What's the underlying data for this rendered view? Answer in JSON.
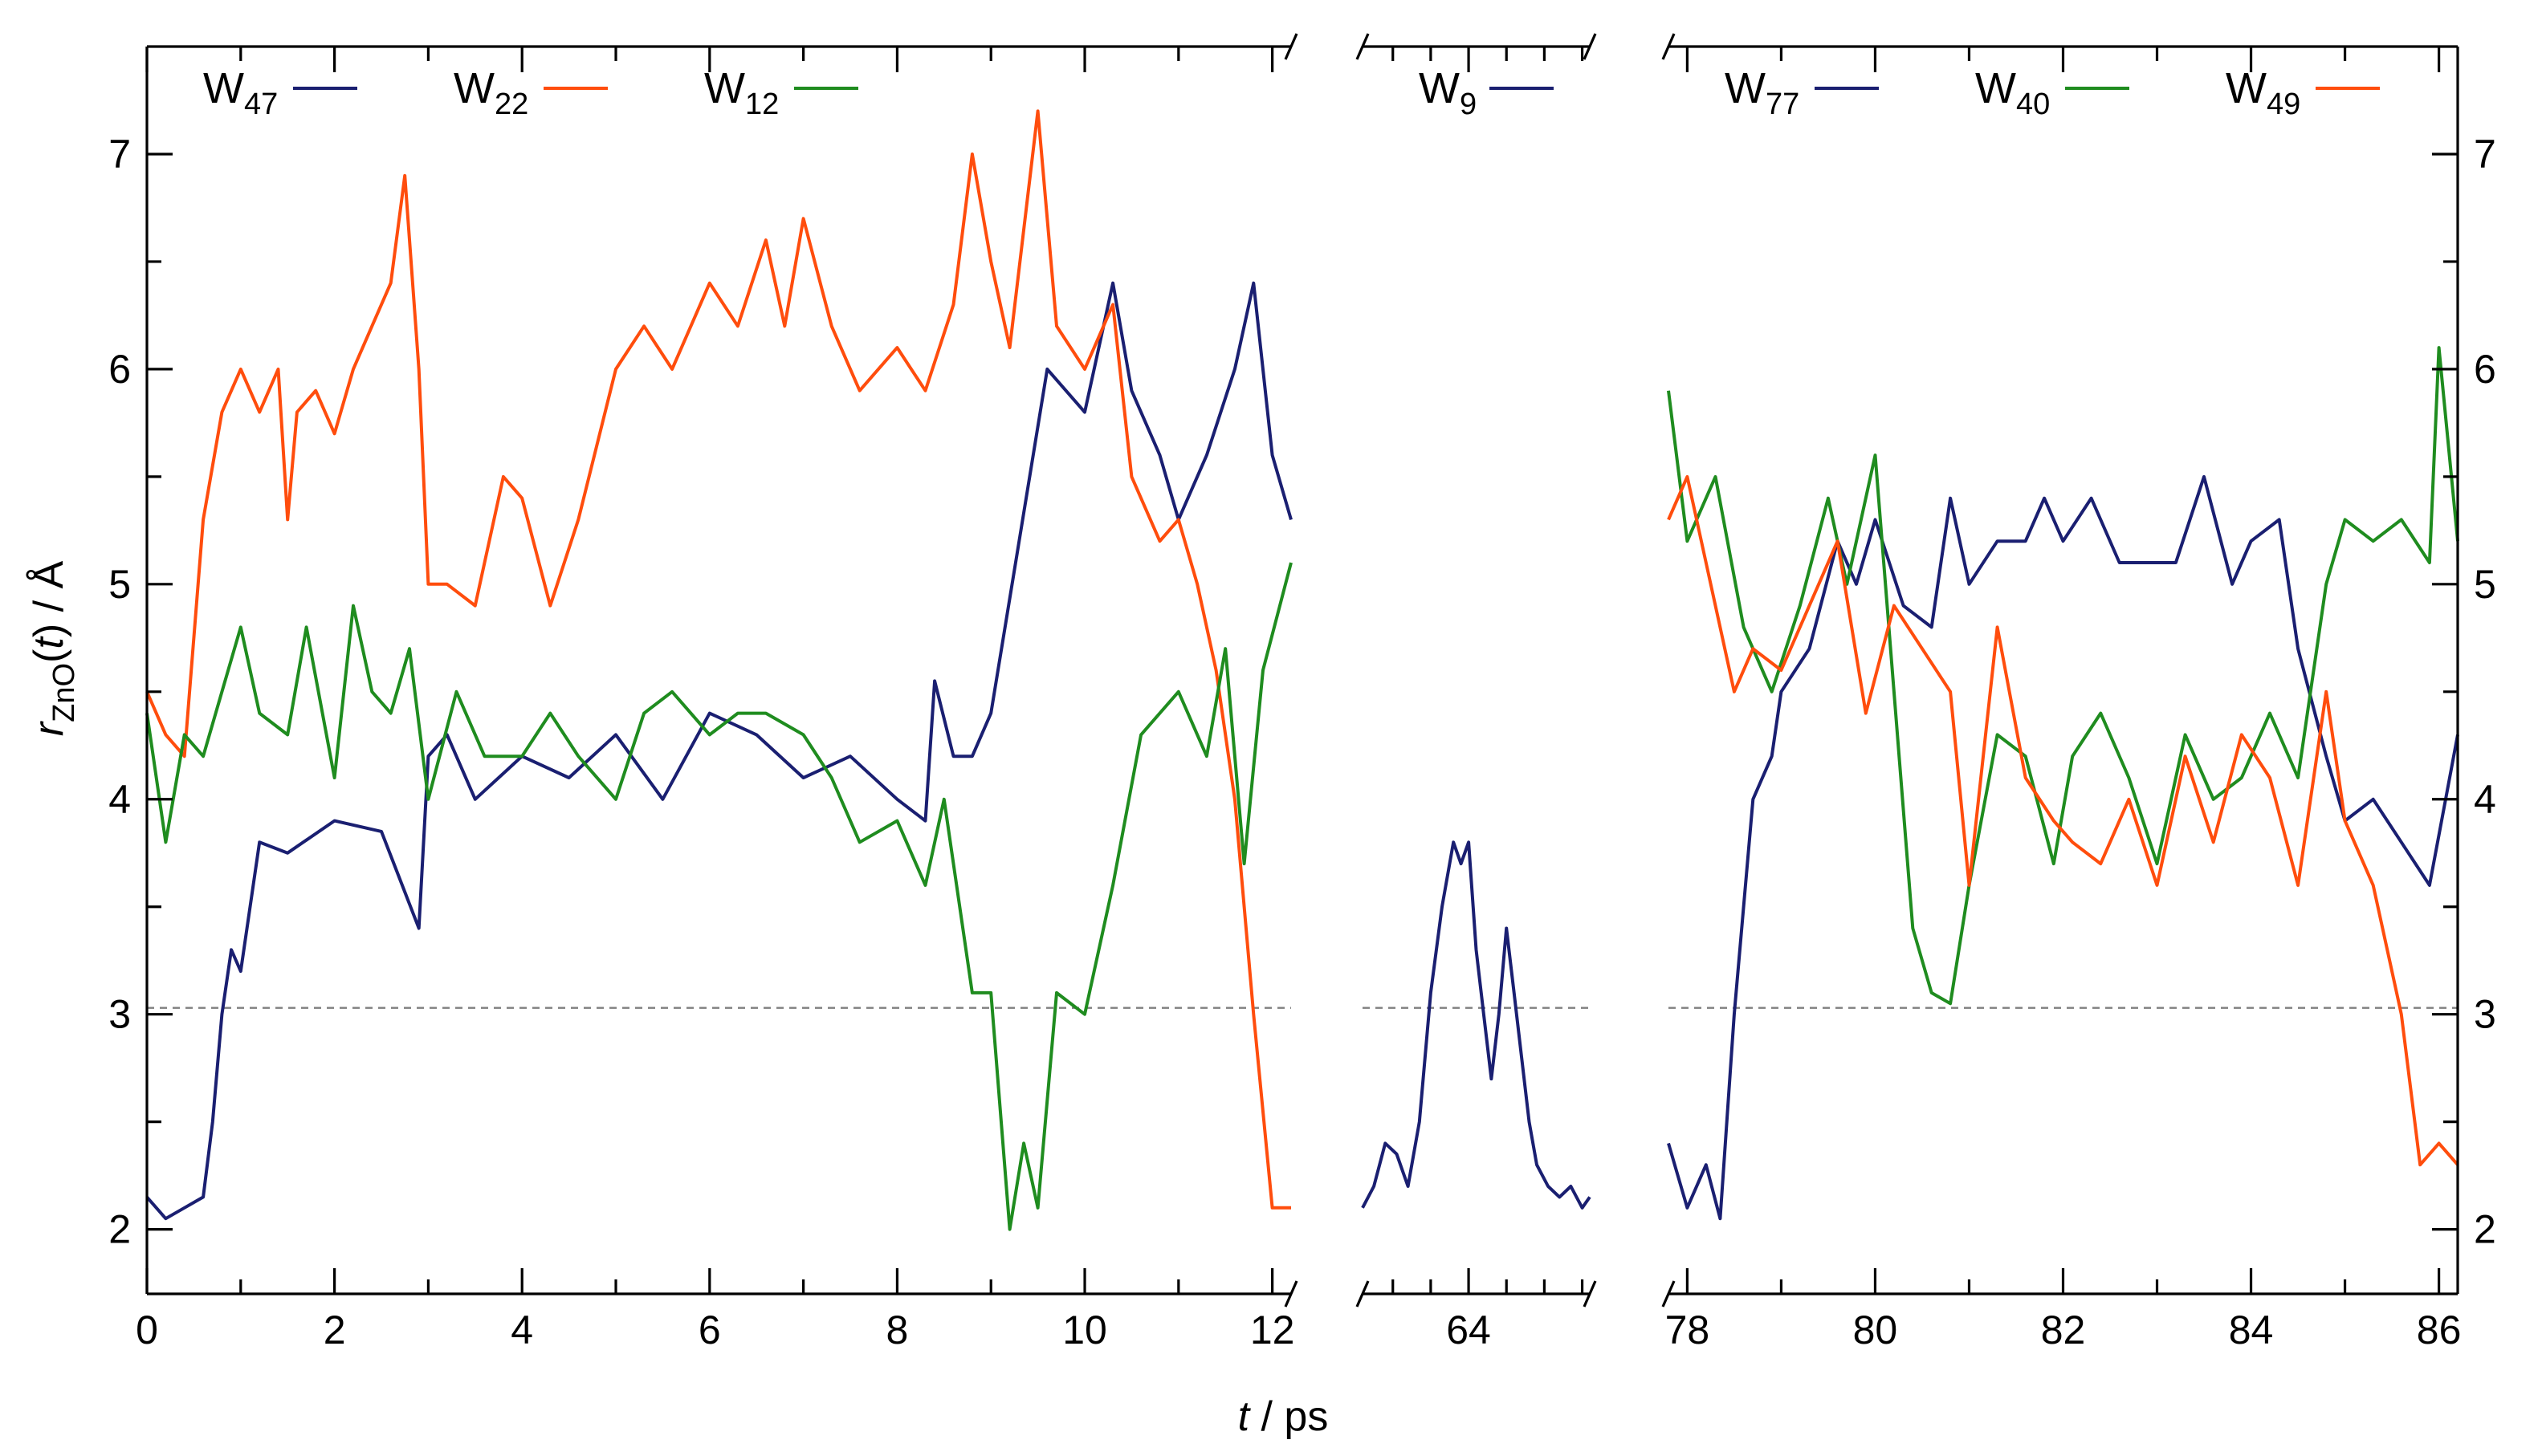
{
  "chart_data": {
    "type": "line",
    "title": "",
    "xlabel": {
      "var": "t",
      "unit": " / ps"
    },
    "ylabel": {
      "var": "r",
      "sub": "ZnO",
      "arg_open": "(",
      "arg_var": "t",
      "arg_close": ")",
      "unit": " / Å"
    },
    "ylim": [
      1.7,
      7.5
    ],
    "yticks": [
      "2",
      "3",
      "4",
      "5",
      "6",
      "7"
    ],
    "threshold": 3.03,
    "colors": {
      "navy": "#1a1f71",
      "orange": "#ff4d0d",
      "green": "#1f8c1f",
      "threshold": "#7f7f7f"
    },
    "panels": [
      {
        "id": "p1",
        "xlim": [
          0,
          12.2
        ],
        "xticks": [
          "0",
          "2",
          "4",
          "6",
          "8",
          "10",
          "12"
        ],
        "legend": [
          {
            "main": "W",
            "sub": "47",
            "color": "#1a1f71"
          },
          {
            "main": "W",
            "sub": "22",
            "color": "#ff4d0d"
          },
          {
            "main": "W",
            "sub": "12",
            "color": "#1f8c1f"
          }
        ],
        "series": [
          {
            "name": "W47",
            "color": "#1a1f71",
            "x": [
              0,
              0.2,
              0.4,
              0.6,
              0.7,
              0.8,
              0.9,
              1.0,
              1.2,
              1.5,
              2.0,
              2.5,
              2.9,
              3.0,
              3.2,
              3.5,
              4.0,
              4.5,
              5.0,
              5.5,
              6.0,
              6.5,
              7.0,
              7.5,
              8.0,
              8.3,
              8.4,
              8.6,
              8.8,
              9.0,
              9.3,
              9.6,
              10.0,
              10.3,
              10.5,
              10.8,
              11.0,
              11.3,
              11.6,
              11.8,
              12.0,
              12.2
            ],
            "y": [
              2.15,
              2.05,
              2.1,
              2.15,
              2.5,
              3.0,
              3.3,
              3.2,
              3.8,
              3.75,
              3.9,
              3.85,
              3.4,
              4.2,
              4.3,
              4.0,
              4.2,
              4.1,
              4.3,
              4.0,
              4.4,
              4.3,
              4.1,
              4.2,
              4.0,
              3.9,
              4.55,
              4.2,
              4.2,
              4.4,
              5.2,
              6.0,
              5.8,
              6.4,
              5.9,
              5.6,
              5.3,
              5.6,
              6.0,
              6.4,
              5.6,
              5.3
            ]
          },
          {
            "name": "W22",
            "color": "#ff4d0d",
            "x": [
              0,
              0.2,
              0.4,
              0.6,
              0.8,
              1.0,
              1.2,
              1.4,
              1.5,
              1.6,
              1.8,
              2.0,
              2.2,
              2.4,
              2.6,
              2.75,
              2.9,
              3.0,
              3.2,
              3.5,
              3.8,
              4.0,
              4.3,
              4.6,
              5.0,
              5.3,
              5.6,
              6.0,
              6.3,
              6.6,
              6.8,
              7.0,
              7.3,
              7.6,
              8.0,
              8.3,
              8.6,
              8.8,
              9.0,
              9.2,
              9.5,
              9.7,
              10.0,
              10.3,
              10.5,
              10.8,
              11.0,
              11.2,
              11.4,
              11.6,
              11.8,
              12.0,
              12.2
            ],
            "y": [
              4.5,
              4.3,
              4.2,
              5.3,
              5.8,
              6.0,
              5.8,
              6.0,
              5.3,
              5.8,
              5.9,
              5.7,
              6.0,
              6.2,
              6.4,
              6.9,
              6.0,
              5.0,
              5.0,
              4.9,
              5.5,
              5.4,
              4.9,
              5.3,
              6.0,
              6.2,
              6.0,
              6.4,
              6.2,
              6.6,
              6.2,
              6.7,
              6.2,
              5.9,
              6.1,
              5.9,
              6.3,
              7.0,
              6.5,
              6.1,
              7.2,
              6.2,
              6.0,
              6.3,
              5.5,
              5.2,
              5.3,
              5.0,
              4.6,
              4.0,
              3.0,
              2.1,
              2.1
            ]
          },
          {
            "name": "W12",
            "color": "#1f8c1f",
            "x": [
              0,
              0.2,
              0.4,
              0.6,
              0.8,
              1.0,
              1.2,
              1.5,
              1.7,
              2.0,
              2.2,
              2.4,
              2.6,
              2.8,
              3.0,
              3.3,
              3.6,
              4.0,
              4.3,
              4.6,
              5.0,
              5.3,
              5.6,
              6.0,
              6.3,
              6.6,
              7.0,
              7.3,
              7.6,
              8.0,
              8.3,
              8.5,
              8.8,
              9.0,
              9.2,
              9.35,
              9.5,
              9.7,
              10.0,
              10.3,
              10.6,
              11.0,
              11.3,
              11.5,
              11.7,
              11.9,
              12.2
            ],
            "y": [
              4.4,
              3.8,
              4.3,
              4.2,
              4.5,
              4.8,
              4.4,
              4.3,
              4.8,
              4.1,
              4.9,
              4.5,
              4.4,
              4.7,
              4.0,
              4.5,
              4.2,
              4.2,
              4.4,
              4.2,
              4.0,
              4.4,
              4.5,
              4.3,
              4.4,
              4.4,
              4.3,
              4.1,
              3.8,
              3.9,
              3.6,
              4.0,
              3.1,
              3.1,
              2.0,
              2.4,
              2.1,
              3.1,
              3.0,
              3.6,
              4.3,
              4.5,
              4.2,
              4.7,
              3.7,
              4.6,
              5.1
            ]
          }
        ]
      },
      {
        "id": "p2",
        "xlim": [
          61.2,
          67.2
        ],
        "xticks": [
          "64"
        ],
        "legend": [
          {
            "main": "W",
            "sub": "9",
            "color": "#1a1f71"
          }
        ],
        "series": [
          {
            "name": "W9",
            "color": "#1a1f71",
            "x": [
              61.2,
              61.5,
              61.8,
              62.1,
              62.4,
              62.7,
              63.0,
              63.3,
              63.6,
              63.8,
              64.0,
              64.2,
              64.4,
              64.6,
              64.8,
              65.0,
              65.2,
              65.4,
              65.6,
              65.8,
              66.1,
              66.4,
              66.7,
              67.0,
              67.2
            ],
            "y": [
              2.1,
              2.2,
              2.4,
              2.35,
              2.2,
              2.5,
              3.1,
              3.5,
              3.8,
              3.7,
              3.8,
              3.3,
              3.0,
              2.7,
              3.0,
              3.4,
              3.1,
              2.8,
              2.5,
              2.3,
              2.2,
              2.15,
              2.2,
              2.1,
              2.15
            ]
          }
        ]
      },
      {
        "id": "p3",
        "xlim": [
          77.8,
          86.2
        ],
        "xticks": [
          "78",
          "80",
          "82",
          "84",
          "86"
        ],
        "legend": [
          {
            "main": "W",
            "sub": "77",
            "color": "#1a1f71"
          },
          {
            "main": "W",
            "sub": "40",
            "color": "#1f8c1f"
          },
          {
            "main": "W",
            "sub": "49",
            "color": "#ff4d0d"
          }
        ],
        "series": [
          {
            "name": "W77",
            "color": "#1a1f71",
            "x": [
              77.8,
              78.0,
              78.2,
              78.35,
              78.5,
              78.7,
              78.9,
              79.0,
              79.3,
              79.6,
              79.8,
              80.0,
              80.3,
              80.6,
              80.8,
              81.0,
              81.3,
              81.6,
              81.8,
              82.0,
              82.3,
              82.6,
              82.9,
              83.2,
              83.5,
              83.8,
              84.0,
              84.3,
              84.5,
              84.8,
              85.0,
              85.3,
              85.6,
              85.9,
              86.2
            ],
            "y": [
              2.4,
              2.1,
              2.3,
              2.05,
              3.0,
              4.0,
              4.2,
              4.5,
              4.7,
              5.2,
              5.0,
              5.3,
              4.9,
              4.8,
              5.4,
              5.0,
              5.2,
              5.2,
              5.4,
              5.2,
              5.4,
              5.1,
              5.1,
              5.1,
              5.5,
              5.0,
              5.2,
              5.3,
              4.7,
              4.2,
              3.9,
              4.0,
              3.8,
              3.6,
              4.3
            ]
          },
          {
            "name": "W40",
            "color": "#1f8c1f",
            "x": [
              77.8,
              78.0,
              78.3,
              78.6,
              78.9,
              79.2,
              79.5,
              79.7,
              80.0,
              80.2,
              80.4,
              80.6,
              80.8,
              81.0,
              81.3,
              81.6,
              81.9,
              82.1,
              82.4,
              82.7,
              83.0,
              83.3,
              83.6,
              83.9,
              84.2,
              84.5,
              84.8,
              85.0,
              85.3,
              85.6,
              85.9,
              86.0,
              86.2
            ],
            "y": [
              5.9,
              5.2,
              5.5,
              4.8,
              4.5,
              4.9,
              5.4,
              5.0,
              5.6,
              4.5,
              3.4,
              3.1,
              3.05,
              3.6,
              4.3,
              4.2,
              3.7,
              4.2,
              4.4,
              4.1,
              3.7,
              4.3,
              4.0,
              4.1,
              4.4,
              4.1,
              5.0,
              5.3,
              5.2,
              5.3,
              5.1,
              6.1,
              5.2
            ]
          },
          {
            "name": "W49",
            "color": "#ff4d0d",
            "x": [
              77.8,
              78.0,
              78.2,
              78.5,
              78.7,
              79.0,
              79.3,
              79.6,
              79.9,
              80.2,
              80.5,
              80.8,
              81.0,
              81.3,
              81.6,
              81.9,
              82.1,
              82.4,
              82.7,
              83.0,
              83.3,
              83.6,
              83.9,
              84.2,
              84.5,
              84.8,
              85.0,
              85.3,
              85.6,
              85.8,
              86.0,
              86.2
            ],
            "y": [
              5.3,
              5.5,
              5.1,
              4.5,
              4.7,
              4.6,
              4.9,
              5.2,
              4.4,
              4.9,
              4.7,
              4.5,
              3.6,
              4.8,
              4.1,
              3.9,
              3.8,
              3.7,
              4.0,
              3.6,
              4.2,
              3.8,
              4.3,
              4.1,
              3.6,
              4.5,
              3.9,
              3.6,
              3.0,
              2.3,
              2.4,
              2.3
            ]
          }
        ]
      }
    ]
  }
}
